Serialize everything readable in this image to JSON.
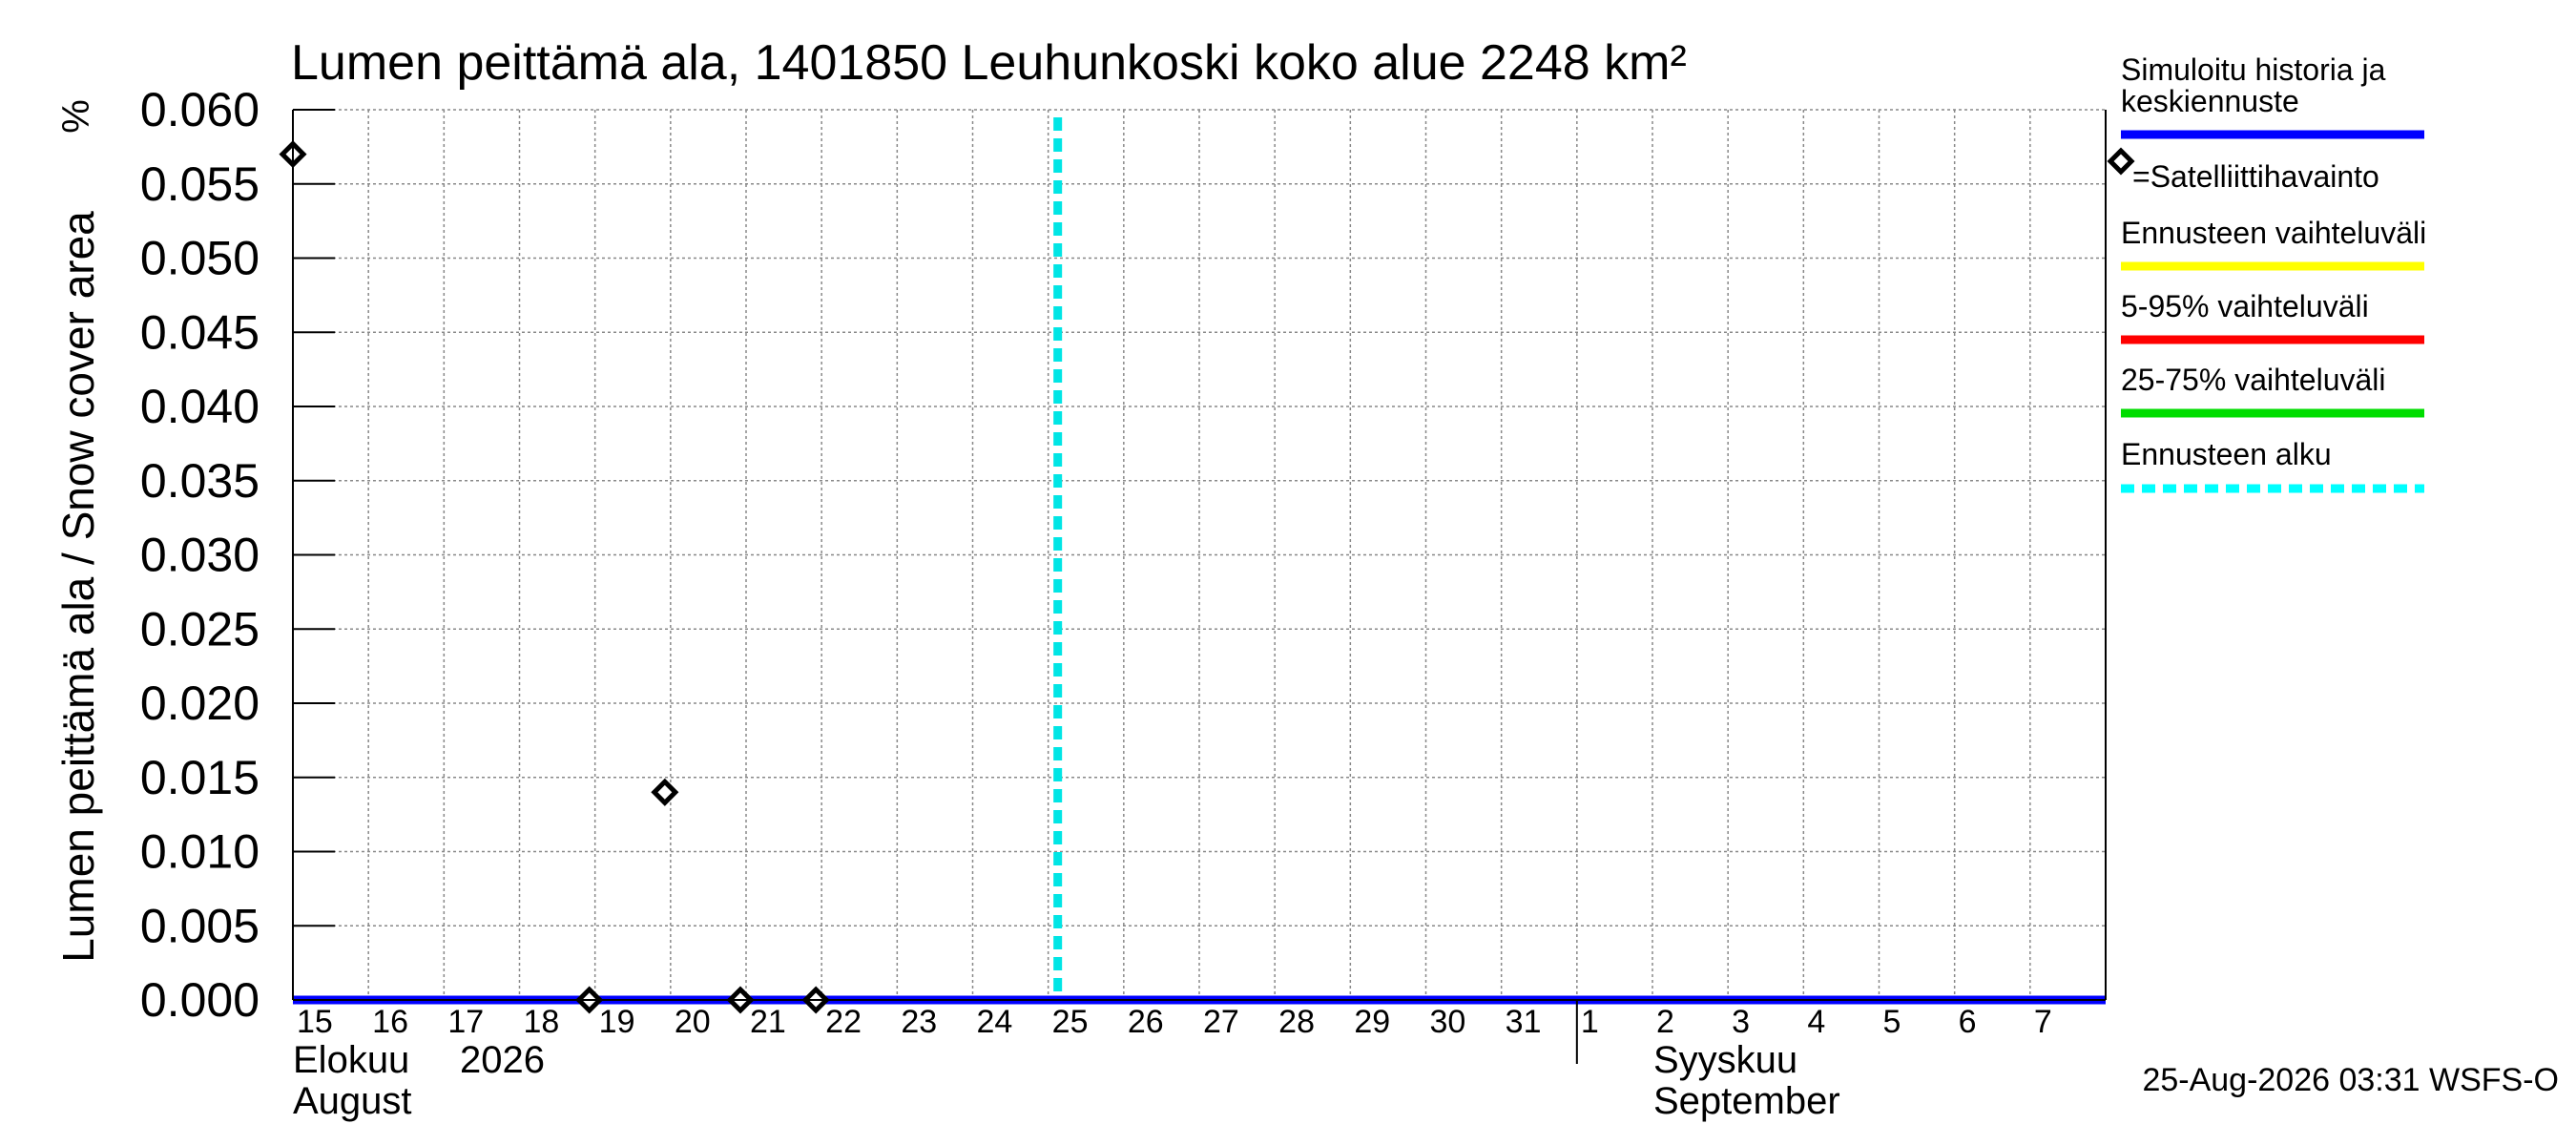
{
  "chart_data": {
    "type": "line",
    "title": "Lumen peittämä ala, 1401850 Leuhunkoski koko alue 2248 km²",
    "ylabel": "Lumen peittämä ala / Snow cover area",
    "yunit": "%",
    "ylim": [
      0,
      0.06
    ],
    "ytick_labels": [
      "0.000",
      "0.005",
      "0.010",
      "0.015",
      "0.020",
      "0.025",
      "0.030",
      "0.035",
      "0.040",
      "0.045",
      "0.050",
      "0.055",
      "0.060"
    ],
    "xlim": [
      "2026-08-15",
      "2026-09-08"
    ],
    "x_tick_labels": [
      "15",
      "16",
      "17",
      "18",
      "19",
      "20",
      "21",
      "22",
      "23",
      "24",
      "25",
      "26",
      "27",
      "28",
      "29",
      "30",
      "31",
      "1",
      "2",
      "3",
      "4",
      "5",
      "6",
      "7"
    ],
    "month_labels": {
      "august_fi": "Elokuu",
      "year": "2026",
      "august_en": "August",
      "september_fi": "Syyskuu",
      "september_en": "September"
    },
    "grid": true,
    "series": [
      {
        "name": "Simuloitu historia ja keskiennuste",
        "type": "line",
        "color": "#0000ff",
        "x": [
          "2026-08-15",
          "2026-09-08"
        ],
        "y": [
          0.0,
          0.0
        ]
      },
      {
        "name": "=Satelliittihavainto",
        "type": "scatter",
        "marker": "diamond",
        "color": "#000000",
        "x": [
          "2026-08-15",
          "2026-08-19",
          "2026-08-20",
          "2026-08-21",
          "2026-08-22"
        ],
        "y": [
          0.057,
          0.0,
          0.014,
          0.0,
          0.0
        ]
      }
    ],
    "forecast_start": "2026-08-25",
    "legend": {
      "placement": "right",
      "items": [
        {
          "label": "Simuloitu historia ja keskiennuste",
          "color": "#0000ff",
          "style": "line"
        },
        {
          "label": "=Satelliittihavainto",
          "color": "#000000",
          "style": "diamond"
        },
        {
          "label": "Ennusteen vaihteluväli",
          "color": "#ffff00",
          "style": "line"
        },
        {
          "label": "5-95% vaihteluväli",
          "color": "#ff0000",
          "style": "line"
        },
        {
          "label": "25-75% vaihteluväli",
          "color": "#00dd00",
          "style": "line"
        },
        {
          "label": "Ennusteen alku",
          "color": "#00ffff",
          "style": "dashed"
        }
      ]
    },
    "footer": "25-Aug-2026 03:31 WSFS-O"
  }
}
